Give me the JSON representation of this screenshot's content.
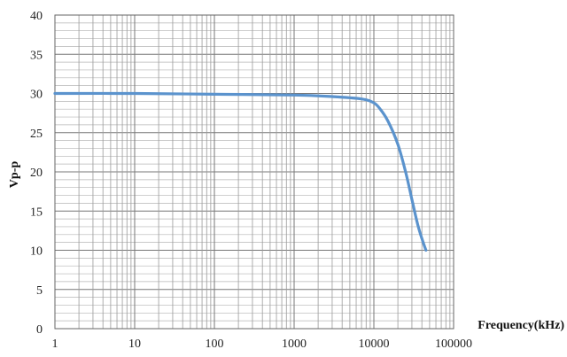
{
  "chart_data": {
    "type": "line",
    "title": "",
    "xlabel": "Frequency(kHz)",
    "ylabel": "Vp-p",
    "x_scale": "log",
    "xlim": [
      1,
      100000
    ],
    "ylim": [
      0,
      40
    ],
    "grid": true,
    "legend": "none",
    "x_ticks": [
      1,
      10,
      100,
      1000,
      10000,
      100000
    ],
    "x_tick_labels": [
      "1",
      "10",
      "100",
      "1000",
      "10000",
      "100000"
    ],
    "y_ticks": [
      0,
      5,
      10,
      15,
      20,
      25,
      30,
      35,
      40
    ],
    "y_tick_labels": [
      "0",
      "5",
      "10",
      "15",
      "20",
      "25",
      "30",
      "35",
      "40"
    ],
    "series": [
      {
        "color": "#5b93cd",
        "x": [
          1,
          10,
          100,
          1000,
          3000,
          7000,
          10000,
          12000,
          15000,
          20000,
          25000,
          30000,
          35000,
          40000,
          45000
        ],
        "y": [
          30.0,
          30.0,
          29.9,
          29.8,
          29.6,
          29.3,
          28.8,
          28.0,
          26.5,
          23.5,
          20.0,
          16.5,
          13.5,
          11.5,
          10.0
        ]
      }
    ]
  }
}
